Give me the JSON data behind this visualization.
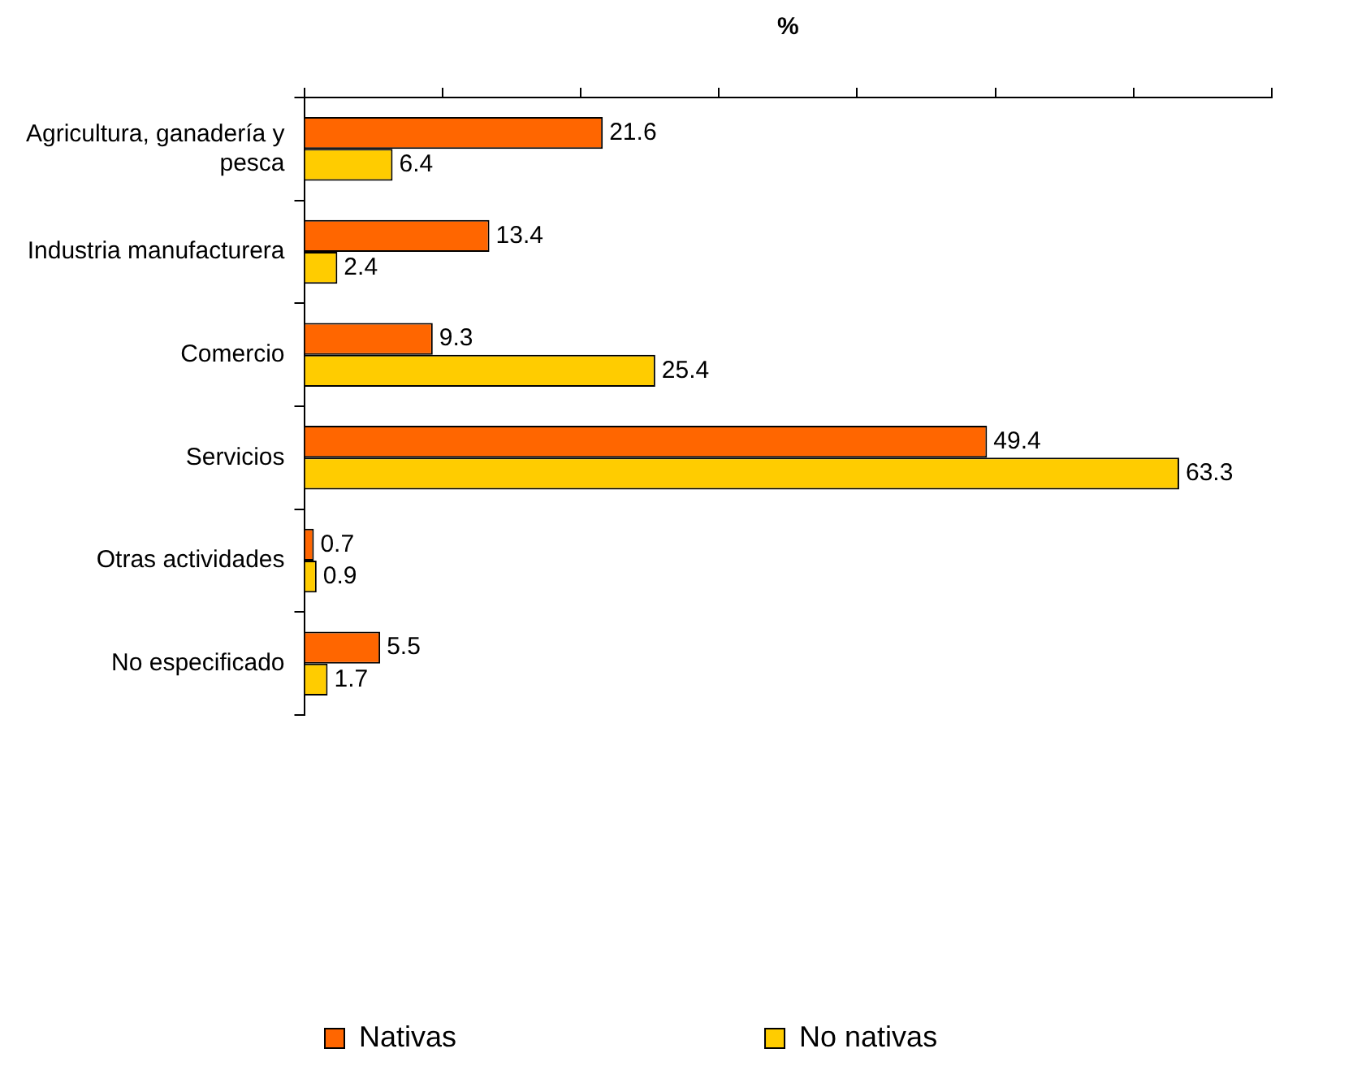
{
  "chart_data": {
    "type": "bar",
    "orientation": "horizontal",
    "xlabel": "%",
    "categories": [
      "Agricultura, ganadería y pesca",
      "Industria manufacturera",
      "Comercio",
      "Servicios",
      "Otras actividades",
      "No especificado"
    ],
    "series": [
      {
        "name": "Nativas",
        "color": "#ff6600",
        "values": [
          21.6,
          13.4,
          9.3,
          49.4,
          0.7,
          5.5
        ]
      },
      {
        "name": "No nativas",
        "color": "#ffcc00",
        "values": [
          6.4,
          2.4,
          25.4,
          63.3,
          0.9,
          1.7
        ]
      }
    ],
    "xlim": [
      0,
      70
    ],
    "xticks": [
      {
        "value": 0,
        "label": null
      },
      {
        "value": 10,
        "label": null
      },
      {
        "value": 20,
        "label": null
      },
      {
        "value": 30,
        "label": null
      },
      {
        "value": 40,
        "label": null
      },
      {
        "value": 50,
        "label": null
      },
      {
        "value": 60,
        "label": null
      },
      {
        "value": 70,
        "label": null
      }
    ],
    "data_labels": true,
    "grid": false,
    "legend": "bottom"
  }
}
